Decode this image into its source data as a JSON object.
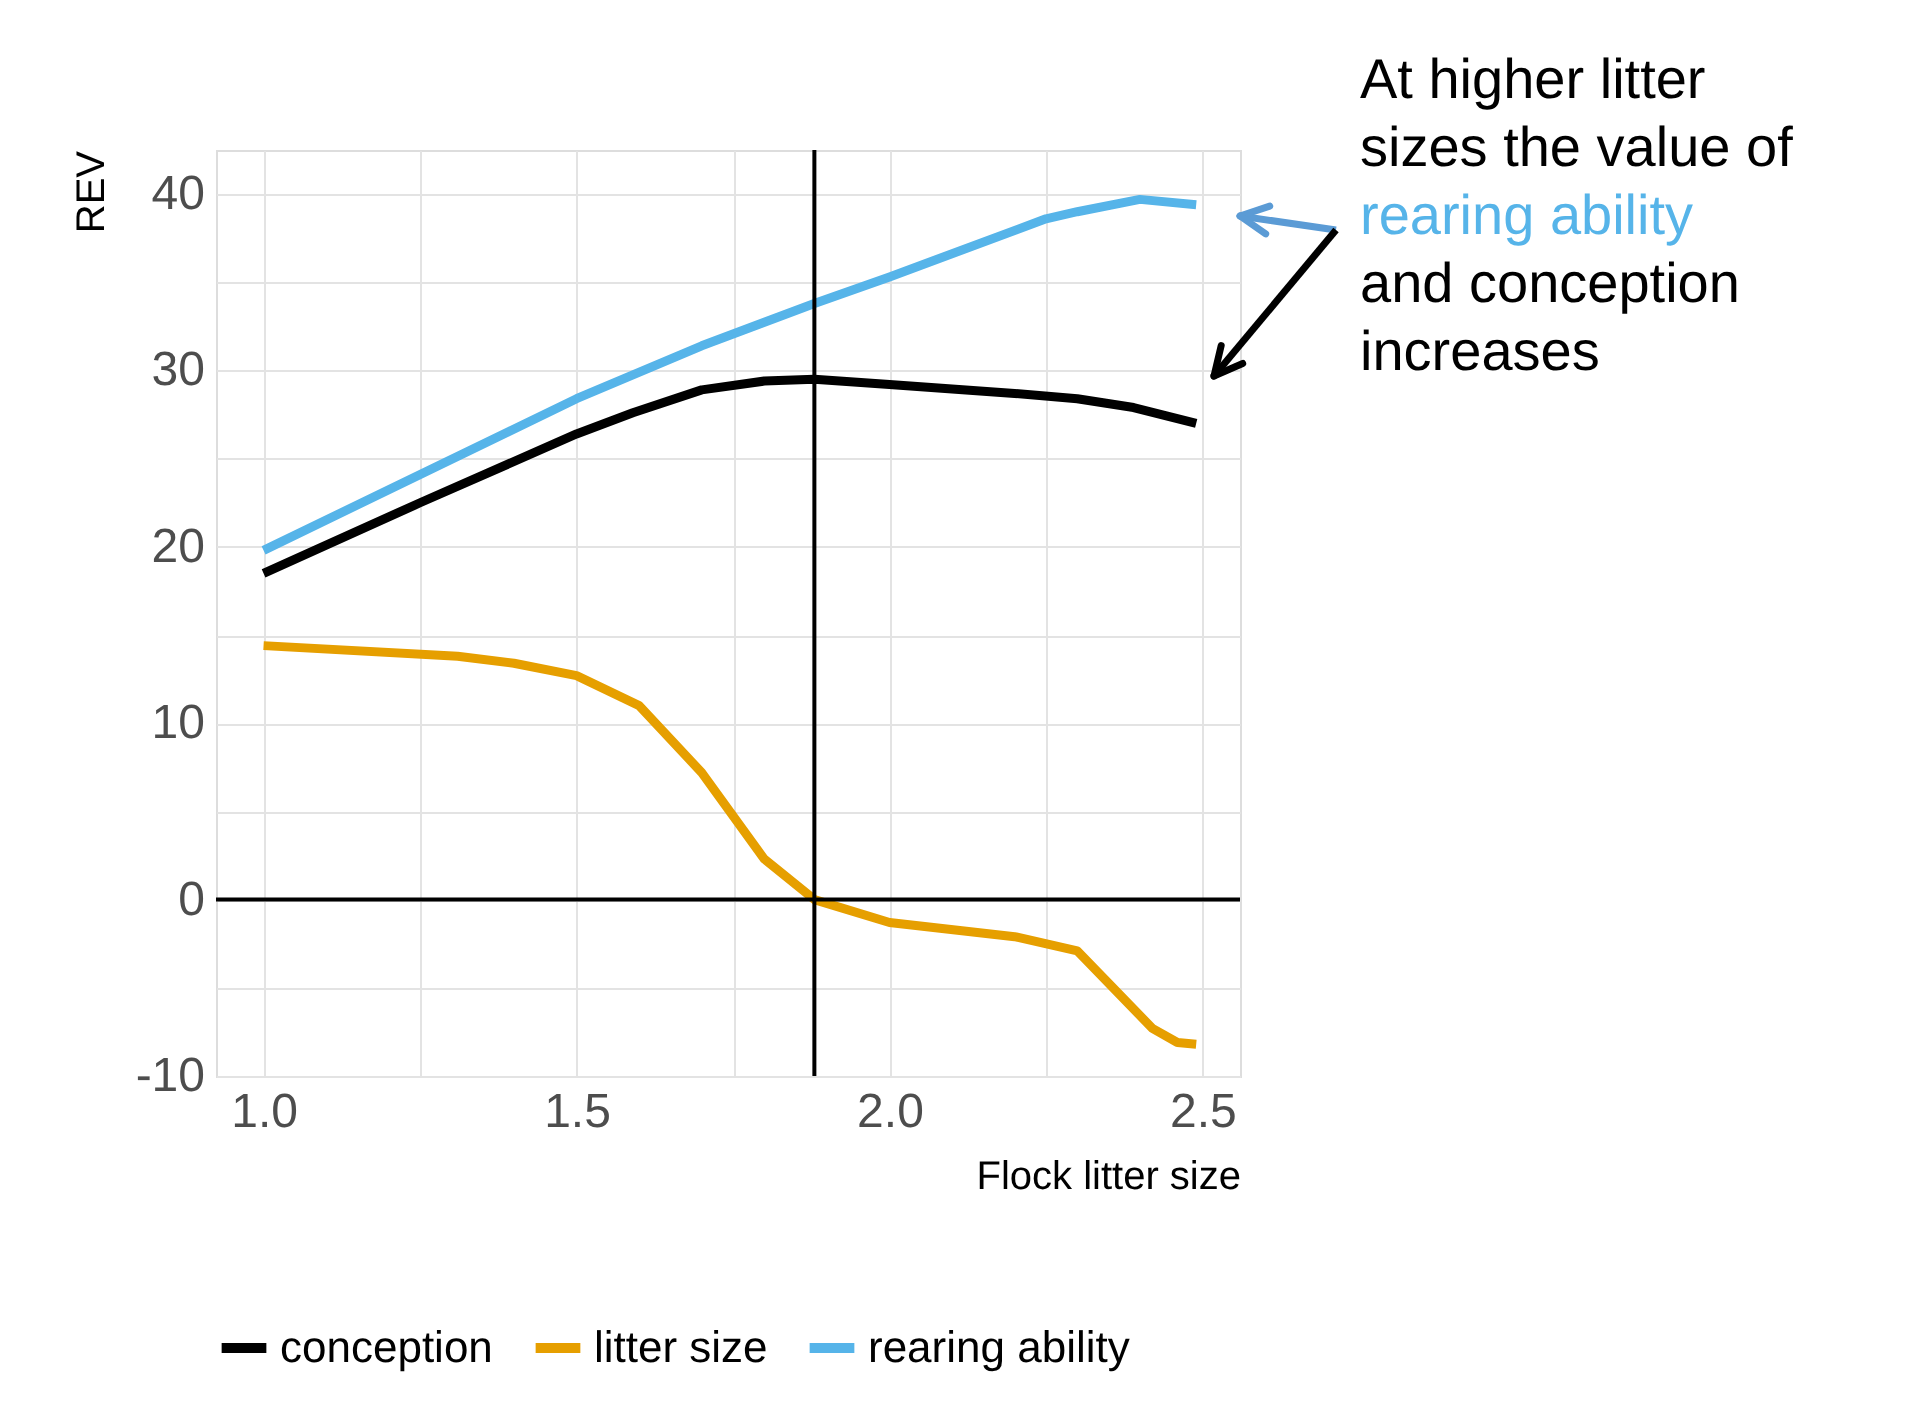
{
  "chart_data": {
    "type": "line",
    "xlabel": "Flock litter size",
    "ylabel": "REV",
    "series": [
      {
        "name": "conception",
        "color": "#000000",
        "x": [
          1.0,
          1.25,
          1.5,
          1.59,
          1.7,
          1.8,
          1.88,
          2.0,
          2.2,
          2.3,
          2.39,
          2.49
        ],
        "values": [
          18.5,
          22.5,
          26.4,
          27.6,
          28.9,
          29.4,
          29.5,
          29.2,
          28.7,
          28.4,
          27.9,
          27.0
        ]
      },
      {
        "name": "litter size",
        "color": "#e69f00",
        "x": [
          1.0,
          1.31,
          1.4,
          1.5,
          1.6,
          1.7,
          1.8,
          1.88,
          2.0,
          2.2,
          2.3,
          2.42,
          2.46,
          2.49
        ],
        "values": [
          14.4,
          13.8,
          13.4,
          12.7,
          11.0,
          7.2,
          2.3,
          0.0,
          -1.3,
          -2.1,
          -2.9,
          -7.3,
          -8.1,
          -8.2
        ]
      },
      {
        "name": "rearing ability",
        "color": "#56b4e9",
        "x": [
          1.0,
          1.5,
          1.7,
          1.88,
          2.0,
          2.25,
          2.3,
          2.4,
          2.49
        ],
        "values": [
          19.8,
          28.4,
          31.4,
          33.8,
          35.3,
          38.6,
          39.0,
          39.7,
          39.4
        ]
      }
    ],
    "xlim": [
      0.924,
      2.56
    ],
    "ylim": [
      -10,
      42.5
    ],
    "xticks": [
      {
        "value": 1.0,
        "label": "1.0"
      },
      {
        "value": 1.25,
        "label": null
      },
      {
        "value": 1.5,
        "label": "1.5"
      },
      {
        "value": 1.75,
        "label": null
      },
      {
        "value": 2.0,
        "label": "2.0"
      },
      {
        "value": 2.25,
        "label": null
      },
      {
        "value": 2.5,
        "label": "2.5"
      }
    ],
    "yticks": [
      -10,
      {
        "value": -5,
        "label": null
      },
      0,
      {
        "value": 5,
        "label": null
      },
      10,
      {
        "value": 15,
        "label": null
      },
      20,
      {
        "value": 25,
        "label": null
      },
      30,
      {
        "value": 35,
        "label": null
      },
      40
    ],
    "ref_lines": [
      {
        "axis": "x",
        "value": 1.88,
        "color": "#000000"
      },
      {
        "axis": "y",
        "value": 0,
        "color": "#000000"
      }
    ],
    "grid": true,
    "legend": "bottom",
    "line_style": "solid",
    "marker": "none",
    "annotations": [
      "At higher litter sizes the value of",
      "rearing ability",
      "and conception increases"
    ]
  }
}
